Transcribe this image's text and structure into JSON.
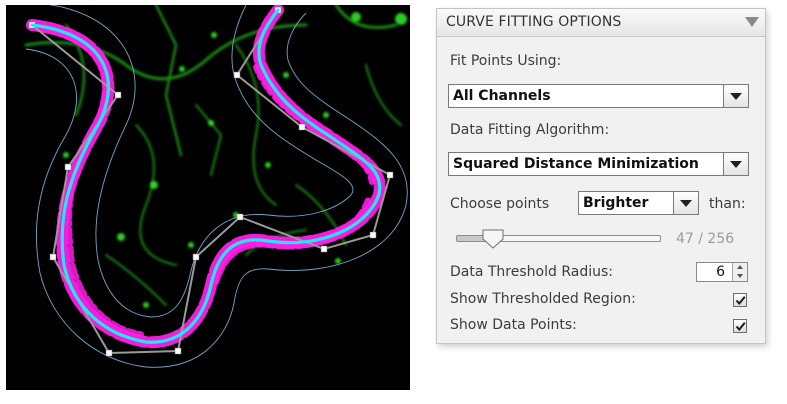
{
  "panel": {
    "title": "CURVE FITTING OPTIONS",
    "fit_points": {
      "label": "Fit Points Using:",
      "selected": "All Channels"
    },
    "algorithm": {
      "label": "Data Fitting Algorithm:",
      "selected": "Squared Distance Minimization"
    },
    "choose_points": {
      "label": "Choose points",
      "selected": "Brighter",
      "suffix": "than:"
    },
    "threshold_slider": {
      "value": 47,
      "max": 256,
      "readout": "47 / 256"
    },
    "threshold_radius": {
      "label": "Data Threshold Radius:",
      "value": "6"
    },
    "show_thresholded_region": {
      "label": "Show Thresholded Region:",
      "checked": true
    },
    "show_data_points": {
      "label": "Show Data Points:",
      "checked": true
    }
  },
  "colors": {
    "fitted_curve": "#22e6f0",
    "threshold_boundary": "#6fa8c8",
    "thresholded_region": "#ff1ee6",
    "signal": "#27e01c",
    "control_polygon": "#9a9a9a",
    "background": "#000000"
  },
  "icons": {
    "collapse": "triangle-down-icon",
    "checkbox": "checkmark-icon",
    "dropdown": "chevron-down-icon"
  }
}
